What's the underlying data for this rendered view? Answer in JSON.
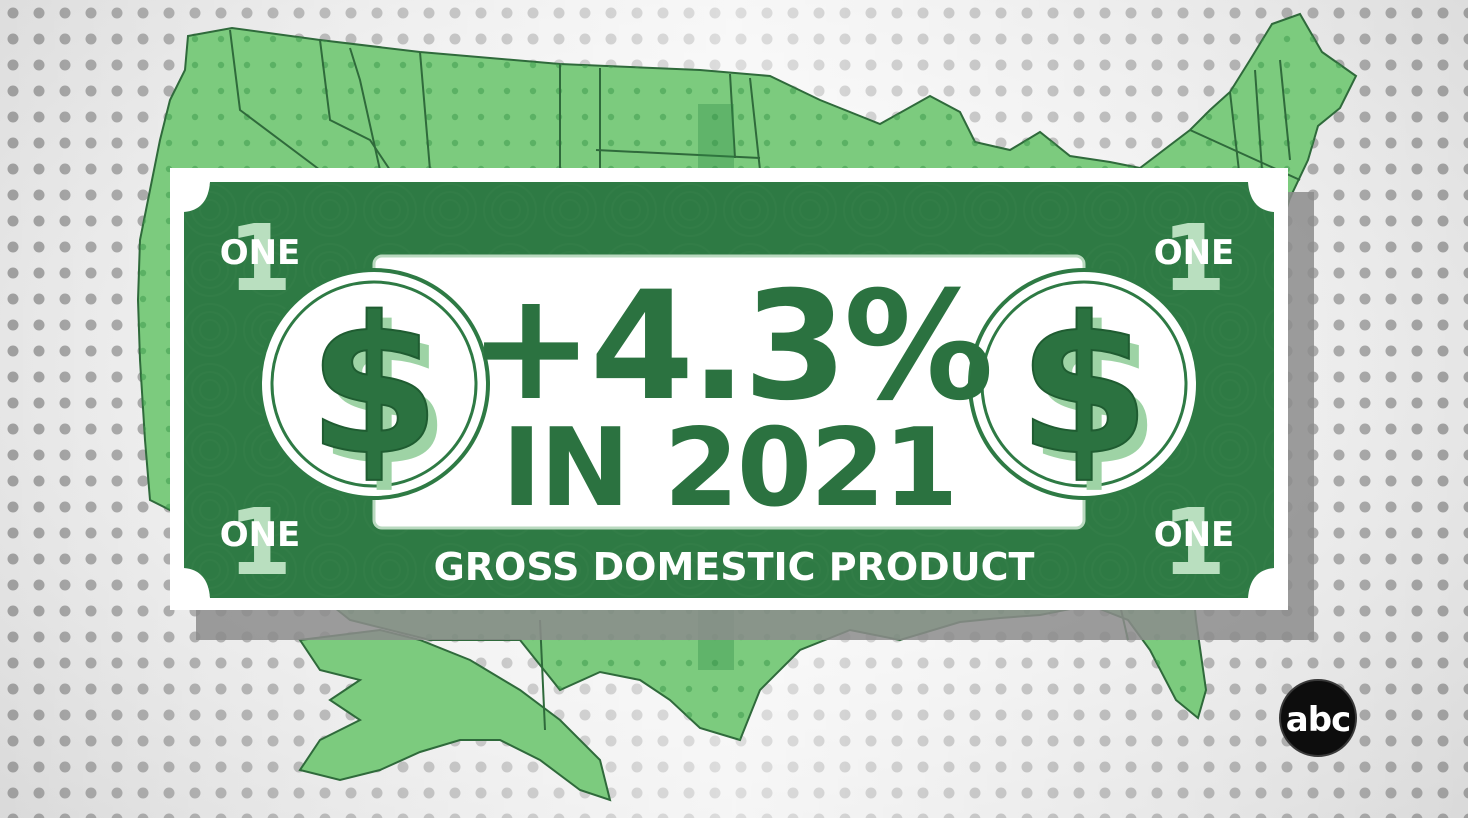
{
  "colors": {
    "map_green": "#7ccb7e",
    "bill_green": "#2e7a44",
    "bill_dark": "#1f5c31",
    "text_green": "#2b7240",
    "white": "#ffffff",
    "dot_gray": "#a9a9a9"
  },
  "banknote": {
    "denomination_word": "ONE",
    "denomination_digit": "1",
    "currency_symbol": "$",
    "headline_value": "+4.3%",
    "headline_period": "IN 2021",
    "caption": "GROSS DOMESTIC PRODUCT"
  },
  "network_logo": {
    "text": "abc"
  }
}
